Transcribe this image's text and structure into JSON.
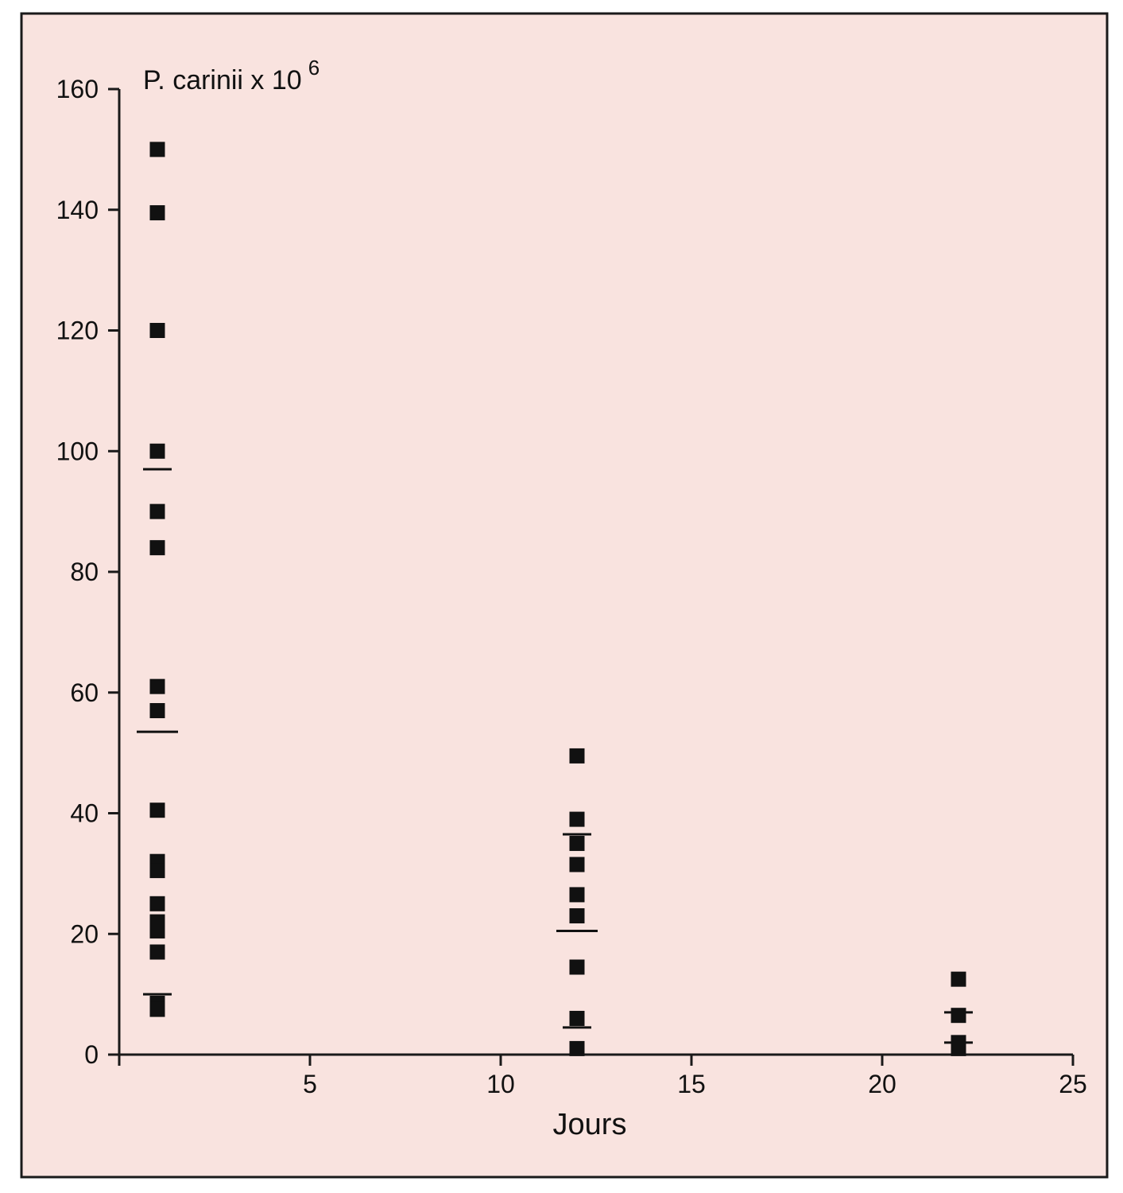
{
  "colors": {
    "background": "#f9e3df",
    "frame": "#1a1a1a",
    "marker": "#111111"
  },
  "chart_data": {
    "type": "scatter",
    "title": "",
    "xlabel": "Jours",
    "ylabel": {
      "base": "P. carinii x 10",
      "exponent": "6"
    },
    "xlim": [
      0,
      25
    ],
    "ylim": [
      0,
      160
    ],
    "x_ticks": [
      5,
      10,
      15,
      20,
      25
    ],
    "x_tick_labels": [
      "5",
      "10",
      "15",
      "20",
      "25"
    ],
    "y_ticks": [
      0,
      20,
      40,
      60,
      80,
      100,
      120,
      140,
      160
    ],
    "y_tick_labels": [
      "0",
      "20",
      "40",
      "60",
      "80",
      "100",
      "120",
      "140",
      "160"
    ],
    "grid": false,
    "groups": [
      {
        "x": 1,
        "values": [
          150,
          139.5,
          120,
          100,
          90,
          84,
          61,
          57,
          40.5,
          32,
          30.5,
          25,
          22,
          20.5,
          17,
          8.5,
          7.5
        ],
        "reference_lines": [
          97,
          53.5,
          10
        ]
      },
      {
        "x": 12,
        "values": [
          49.5,
          39,
          35,
          31.5,
          26.5,
          23,
          14.5,
          6,
          1
        ],
        "reference_lines": [
          36.5,
          20.5,
          4.5
        ]
      },
      {
        "x": 22,
        "values": [
          12.5,
          6.5,
          2,
          1
        ],
        "reference_lines": [
          7,
          2
        ]
      }
    ]
  }
}
